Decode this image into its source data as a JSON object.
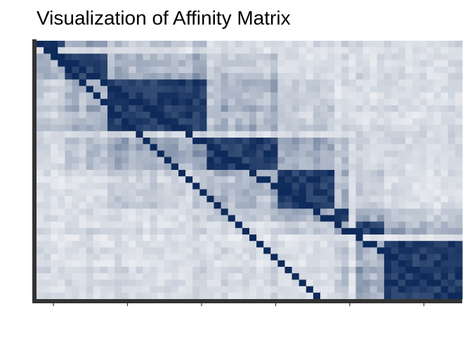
{
  "chart_data": {
    "type": "heatmap",
    "title": "Visualization of Affinity Matrix",
    "xlabel": "",
    "ylabel": "",
    "color_low": "#ffffff",
    "color_high": "#0d2a5a",
    "axis_color": "#333333",
    "value_range": [
      0,
      1
    ],
    "n_rows": 40,
    "n_cols": 60,
    "blocks": [
      {
        "from_row": 0,
        "to_row": 1,
        "from_col": 0,
        "to_col": 4
      },
      {
        "from_row": 2,
        "to_row": 6,
        "from_col": 4,
        "to_col": 10
      },
      {
        "from_row": 6,
        "to_row": 14,
        "from_col": 10,
        "to_col": 24
      },
      {
        "from_row": 15,
        "to_row": 20,
        "from_col": 24,
        "to_col": 34
      },
      {
        "from_row": 20,
        "to_row": 26,
        "from_col": 34,
        "to_col": 42
      },
      {
        "from_row": 26,
        "to_row": 28,
        "from_col": 42,
        "to_col": 44
      },
      {
        "from_row": 28,
        "to_row": 30,
        "from_col": 45,
        "to_col": 49
      },
      {
        "from_row": 31,
        "to_row": 40,
        "from_col": 49,
        "to_col": 60
      }
    ],
    "x_tick_count": 6,
    "y_tick_count": 0
  }
}
